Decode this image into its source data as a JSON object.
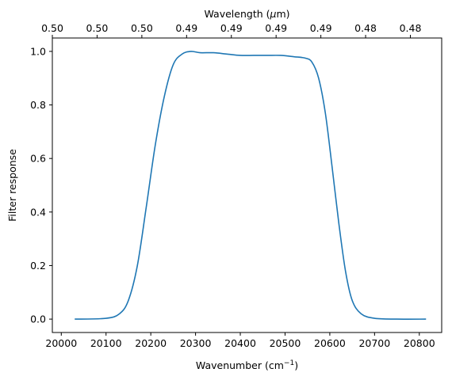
{
  "chart_data": {
    "type": "line",
    "xlabel": "Wavenumber (cm",
    "xlabel_sup": "−1",
    "xlabel_close": ")",
    "ylabel": "Filter response",
    "top_xlabel": "Wavelength (",
    "top_xlabel_mu": "μ",
    "top_xlabel_unit": "m)",
    "xlim": [
      19980,
      20850
    ],
    "ylim": [
      -0.05,
      1.05
    ],
    "x_ticks": [
      20000,
      20100,
      20200,
      20300,
      20400,
      20500,
      20600,
      20700,
      20800
    ],
    "x_tick_labels": [
      "20000",
      "20100",
      "20200",
      "20300",
      "20400",
      "20500",
      "20600",
      "20700",
      "20800"
    ],
    "y_ticks": [
      0.0,
      0.2,
      0.4,
      0.6,
      0.8,
      1.0
    ],
    "y_tick_labels": [
      "0.0",
      "0.2",
      "0.4",
      "0.6",
      "0.8",
      "1.0"
    ],
    "top_ticks_wavenumber": [
      19980,
      20080,
      20180,
      20280,
      20380,
      20480,
      20580,
      20680,
      20780
    ],
    "top_tick_labels": [
      "0.50",
      "0.50",
      "0.50",
      "0.49",
      "0.49",
      "0.49",
      "0.49",
      "0.48",
      "0.48"
    ],
    "line_color": "#1f77b4",
    "grid": false,
    "series": [
      {
        "x": [
          20030,
          20100,
          20130,
          20150,
          20170,
          20190,
          20210,
          20230,
          20250,
          20270,
          20290,
          20310,
          20340,
          20370,
          20400,
          20430,
          20460,
          20490,
          20520,
          20545,
          20560,
          20575,
          20590,
          20605,
          20620,
          20635,
          20650,
          20670,
          20700,
          20750,
          20815
        ],
        "y": [
          0.0,
          0.003,
          0.02,
          0.07,
          0.2,
          0.42,
          0.65,
          0.83,
          0.95,
          0.99,
          1.0,
          0.995,
          0.995,
          0.99,
          0.985,
          0.985,
          0.985,
          0.985,
          0.98,
          0.975,
          0.96,
          0.9,
          0.77,
          0.57,
          0.36,
          0.18,
          0.07,
          0.02,
          0.003,
          0.0,
          0.0
        ]
      }
    ]
  }
}
